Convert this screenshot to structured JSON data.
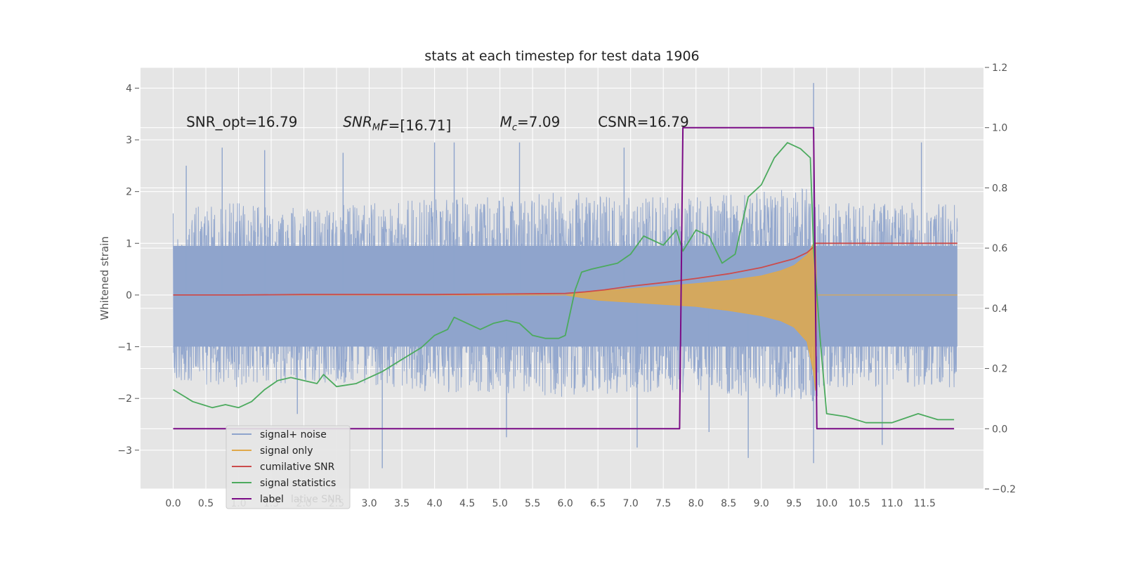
{
  "chart_data": {
    "type": "line",
    "title": "stats at each timestep for test data 1906",
    "xlabel": "",
    "ylabel": "Whitened strain",
    "y2label": "",
    "xlim": [
      -0.5,
      12.4
    ],
    "ylim": [
      -3.75,
      4.4
    ],
    "y2lim": [
      -0.2,
      1.2
    ],
    "xticks": [
      "0.0",
      "0.5",
      "1.0",
      "1.5",
      "2.0",
      "2.5",
      "3.0",
      "3.5",
      "4.0",
      "4.5",
      "5.0",
      "5.5",
      "6.0",
      "6.5",
      "7.0",
      "7.5",
      "8.0",
      "8.5",
      "9.0",
      "9.5",
      "10.0",
      "10.5",
      "11.0",
      "11.5"
    ],
    "yticks": [
      "−3",
      "−2",
      "−1",
      "0",
      "1",
      "2",
      "3",
      "4"
    ],
    "y2ticks": [
      "−0.2",
      "0.0",
      "0.2",
      "0.4",
      "0.6",
      "0.8",
      "1.0",
      "1.2"
    ],
    "grid": true,
    "legend_position": "lower-left",
    "annotations": [
      {
        "text": "SNR_opt=16.79",
        "x": 0.2,
        "y": 3.25
      },
      {
        "text_main": "SNR",
        "text_sub": "M",
        "text_rest": "F=[16.71]",
        "x": 2.6,
        "y": 3.25
      },
      {
        "text_main": "M",
        "text_sub": "c",
        "text_rest": "=7.09",
        "x": 5.0,
        "y": 3.25
      },
      {
        "text": "CSNR=16.79",
        "x": 6.5,
        "y": 3.25
      }
    ],
    "legend": [
      "signal+ noise",
      "signal only",
      "cumilative SNR",
      "signal statistics",
      "label"
    ],
    "legend_ghost_text": "lative SNR",
    "colors": {
      "noise": "#8fa4cc",
      "signal": "#e0a94a",
      "cumsnr": "#cc4c4c",
      "stats": "#4caa5e",
      "label": "#7b0c86",
      "background": "#e5e5e5"
    },
    "series": [
      {
        "name": "signal+ noise",
        "axis": "left",
        "envelope": {
          "t": [
            0,
            1,
            2,
            3,
            4,
            5,
            6,
            7,
            8,
            9,
            9.8,
            10,
            11,
            12
          ],
          "upper_typ": [
            1.6,
            1.7,
            1.6,
            1.7,
            1.8,
            1.8,
            1.9,
            1.8,
            1.8,
            1.9,
            2.0,
            1.7,
            1.7,
            1.7
          ],
          "lower_typ": [
            -1.6,
            -1.7,
            -1.6,
            -1.7,
            -1.8,
            -1.8,
            -1.9,
            -1.8,
            -1.8,
            -1.9,
            -2.0,
            -1.7,
            -1.7,
            -1.7
          ]
        },
        "extremes": [
          {
            "x": 0.2,
            "y": 2.5
          },
          {
            "x": 0.75,
            "y": 2.85
          },
          {
            "x": 1.4,
            "y": 2.8
          },
          {
            "x": 2.6,
            "y": 2.75
          },
          {
            "x": 4.0,
            "y": 2.95
          },
          {
            "x": 4.3,
            "y": 2.95
          },
          {
            "x": 5.3,
            "y": 2.95
          },
          {
            "x": 6.9,
            "y": 2.85
          },
          {
            "x": 9.8,
            "y": 4.1
          },
          {
            "x": 11.45,
            "y": 2.95
          },
          {
            "x": 3.2,
            "y": -3.35
          },
          {
            "x": 5.1,
            "y": -2.75
          },
          {
            "x": 7.1,
            "y": -2.95
          },
          {
            "x": 8.8,
            "y": -3.15
          },
          {
            "x": 9.8,
            "y": -3.25
          },
          {
            "x": 10.85,
            "y": -2.9
          },
          {
            "x": 1.9,
            "y": -2.3
          },
          {
            "x": 8.2,
            "y": -2.65
          }
        ]
      },
      {
        "name": "signal only",
        "axis": "left",
        "t": [
          6.0,
          6.5,
          7.0,
          7.5,
          8.0,
          8.5,
          9.0,
          9.3,
          9.5,
          9.7,
          9.8,
          9.83,
          9.85
        ],
        "upper": [
          0.0,
          0.08,
          0.12,
          0.17,
          0.22,
          0.28,
          0.37,
          0.47,
          0.57,
          0.77,
          1.0,
          1.0,
          0.0
        ],
        "lower": [
          0.0,
          -0.1,
          -0.14,
          -0.18,
          -0.22,
          -0.3,
          -0.4,
          -0.5,
          -0.62,
          -0.9,
          -1.5,
          -1.85,
          0.0
        ]
      },
      {
        "name": "cumilative SNR",
        "axis": "left",
        "x": [
          0,
          1,
          2,
          3,
          4,
          5,
          6,
          6.3,
          6.6,
          7,
          7.5,
          8,
          8.5,
          9,
          9.5,
          9.7,
          9.8,
          9.82,
          9.85,
          12
        ],
        "y": [
          0,
          0.0,
          0.01,
          0.01,
          0.01,
          0.02,
          0.03,
          0.06,
          0.1,
          0.17,
          0.24,
          0.32,
          0.41,
          0.53,
          0.7,
          0.82,
          0.93,
          1.0,
          1.0,
          1.0
        ]
      },
      {
        "name": "signal statistics",
        "axis": "right",
        "x": [
          0,
          0.15,
          0.3,
          0.45,
          0.6,
          0.8,
          1.0,
          1.2,
          1.4,
          1.6,
          1.8,
          2.0,
          2.2,
          2.3,
          2.5,
          2.8,
          3.0,
          3.2,
          3.5,
          3.8,
          4.0,
          4.2,
          4.3,
          4.5,
          4.7,
          4.9,
          5.1,
          5.3,
          5.5,
          5.7,
          5.9,
          6.0,
          6.05,
          6.15,
          6.25,
          6.4,
          6.6,
          6.8,
          7.0,
          7.2,
          7.5,
          7.7,
          7.8,
          8.0,
          8.2,
          8.4,
          8.6,
          8.8,
          9.0,
          9.2,
          9.4,
          9.6,
          9.75,
          9.8,
          9.9,
          10.0,
          10.3,
          10.6,
          11.0,
          11.4,
          11.7,
          11.95
        ],
        "y": [
          0.13,
          0.11,
          0.09,
          0.08,
          0.07,
          0.08,
          0.07,
          0.09,
          0.13,
          0.16,
          0.17,
          0.16,
          0.15,
          0.18,
          0.14,
          0.15,
          0.17,
          0.19,
          0.23,
          0.27,
          0.31,
          0.33,
          0.37,
          0.35,
          0.33,
          0.35,
          0.36,
          0.35,
          0.31,
          0.3,
          0.3,
          0.31,
          0.36,
          0.46,
          0.52,
          0.53,
          0.54,
          0.55,
          0.58,
          0.64,
          0.61,
          0.66,
          0.59,
          0.66,
          0.64,
          0.55,
          0.58,
          0.77,
          0.81,
          0.9,
          0.95,
          0.93,
          0.9,
          0.6,
          0.3,
          0.05,
          0.04,
          0.02,
          0.02,
          0.05,
          0.03,
          0.03
        ]
      },
      {
        "name": "label",
        "axis": "right",
        "x": [
          0,
          7.75,
          7.8,
          9.8,
          9.85,
          11.95
        ],
        "y": [
          0,
          0,
          1,
          1,
          0,
          0
        ]
      }
    ]
  }
}
